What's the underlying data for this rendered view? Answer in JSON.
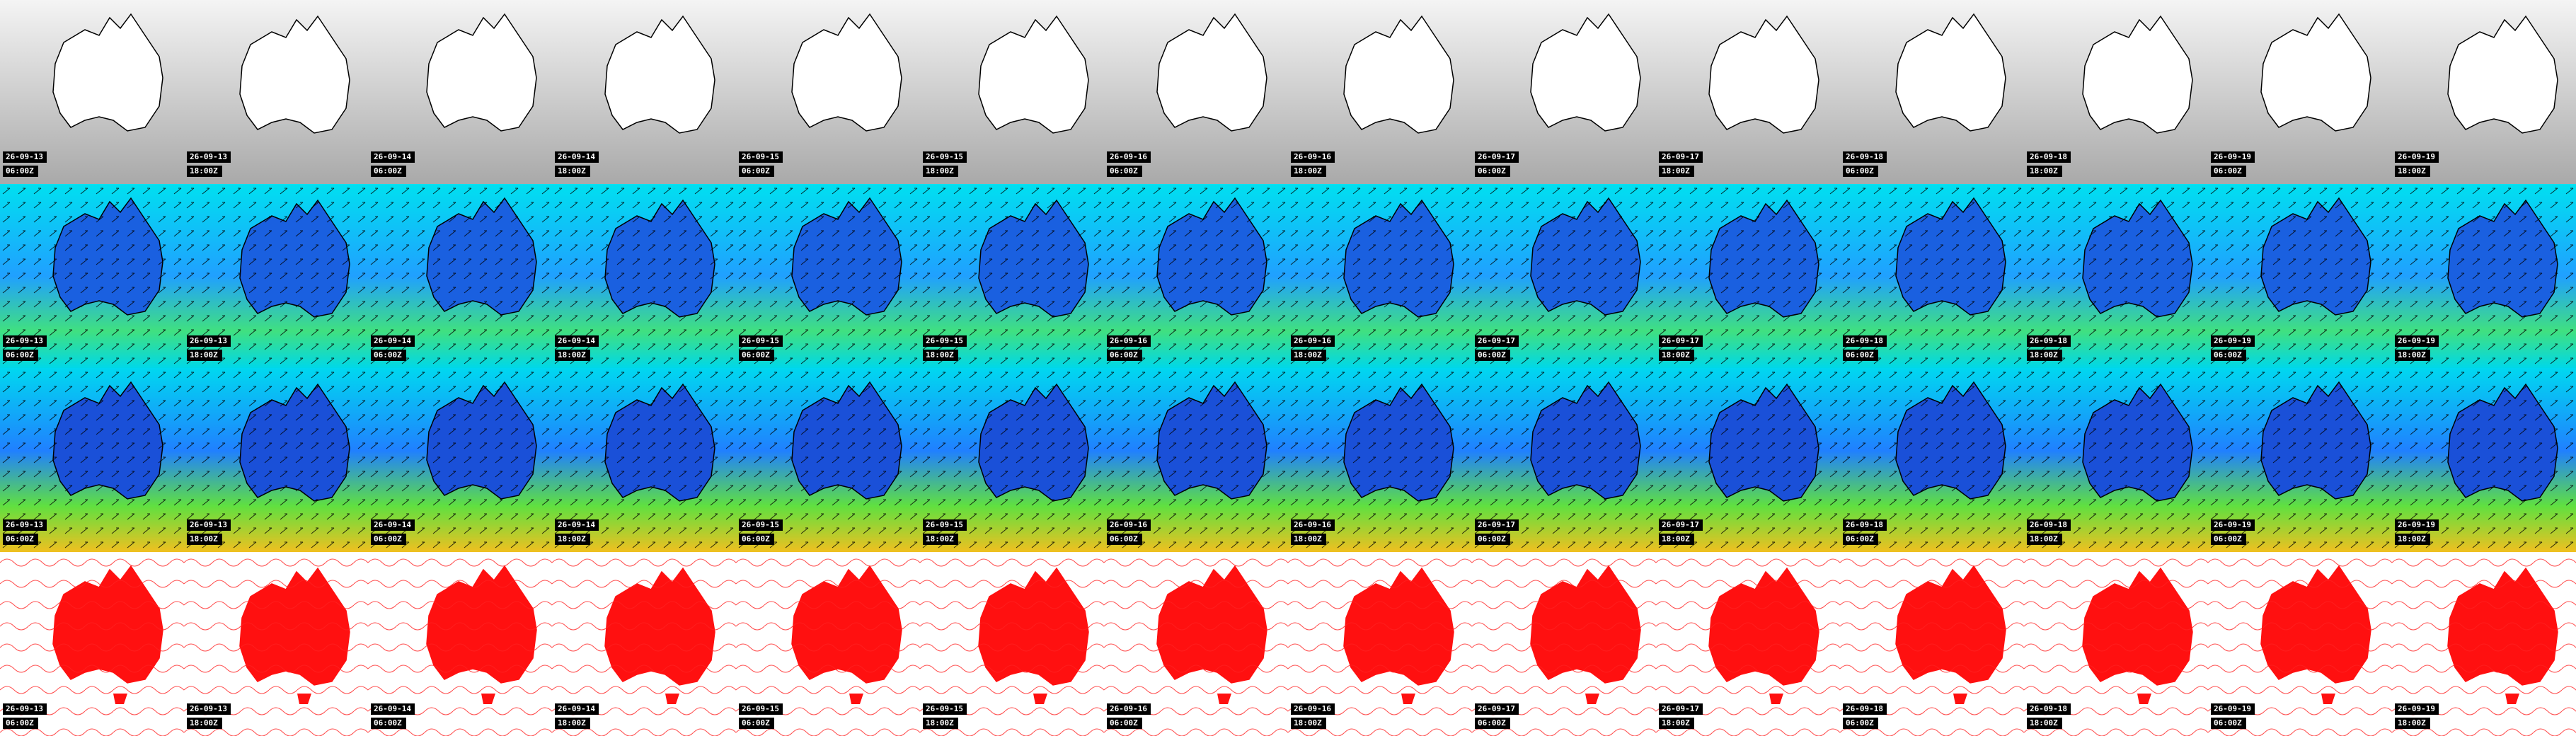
{
  "panels": {
    "columns": [
      {
        "date": "26-09-13",
        "time": "06:00Z"
      },
      {
        "date": "26-09-13",
        "time": "18:00Z"
      },
      {
        "date": "26-09-14",
        "time": "06:00Z"
      },
      {
        "date": "26-09-14",
        "time": "18:00Z"
      },
      {
        "date": "26-09-15",
        "time": "06:00Z"
      },
      {
        "date": "26-09-15",
        "time": "18:00Z"
      },
      {
        "date": "26-09-16",
        "time": "06:00Z"
      },
      {
        "date": "26-09-16",
        "time": "18:00Z"
      },
      {
        "date": "26-09-17",
        "time": "06:00Z"
      },
      {
        "date": "26-09-17",
        "time": "18:00Z"
      },
      {
        "date": "26-09-18",
        "time": "06:00Z"
      },
      {
        "date": "26-09-18",
        "time": "18:00Z"
      },
      {
        "date": "26-09-19",
        "time": "06:00Z"
      },
      {
        "date": "26-09-19",
        "time": "18:00Z"
      }
    ]
  }
}
